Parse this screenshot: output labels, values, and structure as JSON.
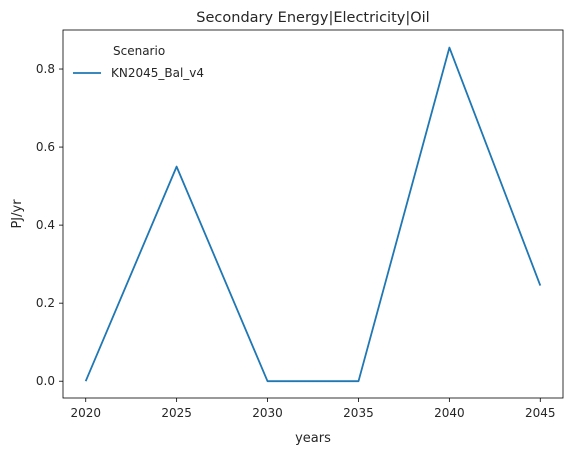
{
  "chart_data": {
    "type": "line",
    "title": "Secondary Energy|Electricity|Oil",
    "xlabel": "years",
    "ylabel": "PJ/yr",
    "x": [
      2020,
      2025,
      2030,
      2035,
      2040,
      2045
    ],
    "xticks": [
      "2020",
      "2025",
      "2030",
      "2035",
      "2040",
      "2045"
    ],
    "yticks": [
      "0.0",
      "0.2",
      "0.4",
      "0.6",
      "0.8"
    ],
    "ylim": [
      -0.043,
      0.9
    ],
    "xlim": [
      2018.75,
      2046.25
    ],
    "grid": false,
    "legend": {
      "title": "Scenario",
      "placement": "top-left"
    },
    "series": [
      {
        "name": "KN2045_Bal_v4",
        "color": "#1f77b4",
        "values": [
          0.0,
          0.55,
          0.0,
          0.0,
          0.855,
          0.245
        ]
      }
    ]
  }
}
